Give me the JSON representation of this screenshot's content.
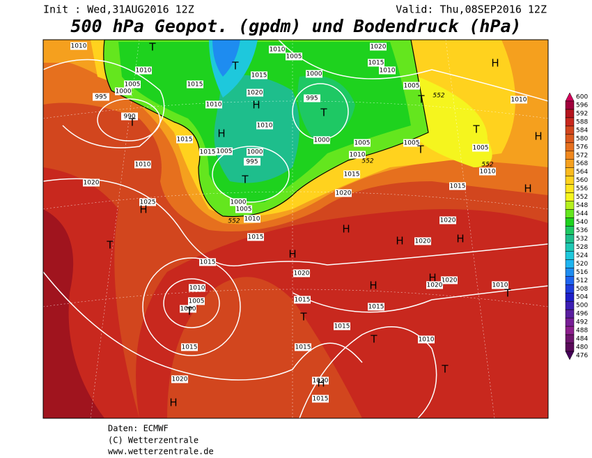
{
  "header": {
    "init": "Init : Wed,31AUG2016 12Z",
    "valid": "Valid: Thu,08SEP2016 12Z",
    "title": "500 hPa Geopot. (gpdm) und Bodendruck (hPa)"
  },
  "colorbar": {
    "levels": [
      600,
      596,
      592,
      588,
      584,
      580,
      576,
      572,
      568,
      564,
      560,
      556,
      552,
      548,
      544,
      540,
      536,
      532,
      528,
      524,
      520,
      516,
      512,
      508,
      504,
      500,
      496,
      492,
      488,
      484,
      480,
      476
    ],
    "colors": [
      "#d2005a",
      "#a0003c",
      "#b4141e",
      "#c8281e",
      "#d2461e",
      "#dc5a1e",
      "#e6701e",
      "#f0881e",
      "#f5a01e",
      "#faba1e",
      "#ffd21e",
      "#ffe61e",
      "#f5f51e",
      "#b4f01e",
      "#64e61e",
      "#1ed21e",
      "#1ec864",
      "#1ebe8c",
      "#1ec8b4",
      "#1ec8dc",
      "#1eb4f0",
      "#1e8cf0",
      "#1e64f0",
      "#1e3cdc",
      "#1e1ec8",
      "#3c1eb4",
      "#5a1ea0",
      "#781e96",
      "#8c1e8c",
      "#6e146e",
      "#5a0a5a",
      "#46005a"
    ]
  },
  "map_labels": [
    "1010",
    "1010",
    "1005",
    "1020",
    "1015",
    "1010",
    "1010",
    "1005",
    "995",
    "1000",
    "1015",
    "1015",
    "1000",
    "1020",
    "1010",
    "995",
    "1005",
    "1010",
    "990",
    "1010",
    "1015",
    "1000",
    "1015",
    "1005",
    "1000",
    "1005",
    "1005",
    "1005",
    "995",
    "1010",
    "1010",
    "1015",
    "1010",
    "1020",
    "1020",
    "1015",
    "1025",
    "1000",
    "1005",
    "1010",
    "1020",
    "1015",
    "1020",
    "1020",
    "1015",
    "1010",
    "1005",
    "1000",
    "1020",
    "1020",
    "1010",
    "1015",
    "1015",
    "1015",
    "1015",
    "1015",
    "1010",
    "1020",
    "1020",
    "1015"
  ],
  "geopotential_labels": [
    "552",
    "552",
    "552",
    "552"
  ],
  "centers": [
    "T",
    "T",
    "H",
    "T",
    "H",
    "T",
    "T",
    "T",
    "H",
    "H",
    "T",
    "T",
    "H",
    "H",
    "T",
    "H",
    "H",
    "H",
    "H",
    "H",
    "H",
    "T",
    "T",
    "T",
    "T",
    "T",
    "H",
    "H"
  ],
  "footer": [
    "Daten: ECMWF",
    "(C) Wetterzentrale",
    "www.wetterzentrale.de"
  ]
}
